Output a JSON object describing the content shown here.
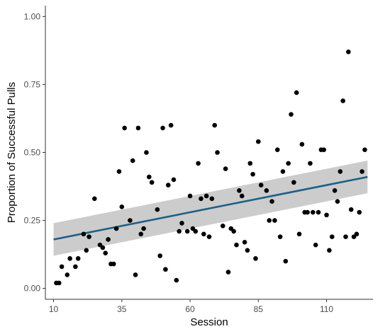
{
  "colors": {
    "points": "#000000",
    "fit_line": "#1f5f86",
    "ci_band": "#bfbfbf",
    "axis": "#333333",
    "tick_text": "#4d4d4d"
  },
  "chart_data": {
    "type": "scatter",
    "title": "",
    "xlabel": "Session",
    "ylabel": "Proportion of Successful Pulls",
    "xlim": [
      7,
      127
    ],
    "ylim": [
      -0.04,
      1.04
    ],
    "x_ticks": [
      10,
      35,
      60,
      85,
      110
    ],
    "x_tick_labels": [
      "10",
      "35",
      "60",
      "85",
      "110"
    ],
    "y_ticks": [
      0,
      0.25,
      0.5,
      0.75,
      1.0
    ],
    "y_tick_labels": [
      "0.00",
      "0.25",
      "0.50",
      "0.75",
      "1.00"
    ],
    "grid": false,
    "legend": "none",
    "points": [
      [
        11,
        0.02
      ],
      [
        12,
        0.02
      ],
      [
        13,
        0.08
      ],
      [
        15,
        0.05
      ],
      [
        16,
        0.11
      ],
      [
        18,
        0.08
      ],
      [
        19,
        0.11
      ],
      [
        21,
        0.2
      ],
      [
        22,
        0.14
      ],
      [
        23,
        0.19
      ],
      [
        25,
        0.33
      ],
      [
        27,
        0.16
      ],
      [
        28,
        0.15
      ],
      [
        29,
        0.13
      ],
      [
        30,
        0.18
      ],
      [
        31,
        0.09
      ],
      [
        32,
        0.09
      ],
      [
        33,
        0.22
      ],
      [
        34,
        0.43
      ],
      [
        35,
        0.3
      ],
      [
        36,
        0.59
      ],
      [
        38,
        0.25
      ],
      [
        39,
        0.47
      ],
      [
        40,
        0.05
      ],
      [
        41,
        0.59
      ],
      [
        42,
        0.2
      ],
      [
        43,
        0.22
      ],
      [
        44,
        0.5
      ],
      [
        45,
        0.41
      ],
      [
        46,
        0.39
      ],
      [
        48,
        0.29
      ],
      [
        49,
        0.12
      ],
      [
        50,
        0.59
      ],
      [
        51,
        0.07
      ],
      [
        52,
        0.38
      ],
      [
        53,
        0.6
      ],
      [
        54,
        0.4
      ],
      [
        55,
        0.03
      ],
      [
        56,
        0.21
      ],
      [
        57,
        0.24
      ],
      [
        59,
        0.21
      ],
      [
        60,
        0.34
      ],
      [
        61,
        0.22
      ],
      [
        62,
        0.21
      ],
      [
        63,
        0.46
      ],
      [
        64,
        0.33
      ],
      [
        65,
        0.2
      ],
      [
        66,
        0.34
      ],
      [
        67,
        0.19
      ],
      [
        68,
        0.33
      ],
      [
        69,
        0.6
      ],
      [
        70,
        0.5
      ],
      [
        72,
        0.23
      ],
      [
        73,
        0.44
      ],
      [
        74,
        0.06
      ],
      [
        75,
        0.22
      ],
      [
        76,
        0.21
      ],
      [
        77,
        0.16
      ],
      [
        78,
        0.36
      ],
      [
        79,
        0.34
      ],
      [
        80,
        0.17
      ],
      [
        81,
        0.14
      ],
      [
        82,
        0.46
      ],
      [
        83,
        0.42
      ],
      [
        84,
        0.11
      ],
      [
        85,
        0.54
      ],
      [
        86,
        0.38
      ],
      [
        88,
        0.36
      ],
      [
        89,
        0.25
      ],
      [
        90,
        0.32
      ],
      [
        91,
        0.25
      ],
      [
        92,
        0.51
      ],
      [
        93,
        0.19
      ],
      [
        94,
        0.43
      ],
      [
        95,
        0.1
      ],
      [
        96,
        0.46
      ],
      [
        97,
        0.64
      ],
      [
        98,
        0.39
      ],
      [
        99,
        0.72
      ],
      [
        100,
        0.2
      ],
      [
        101,
        0.53
      ],
      [
        102,
        0.28
      ],
      [
        103,
        0.28
      ],
      [
        104,
        0.46
      ],
      [
        105,
        0.28
      ],
      [
        106,
        0.16
      ],
      [
        107,
        0.28
      ],
      [
        108,
        0.51
      ],
      [
        109,
        0.51
      ],
      [
        110,
        0.27
      ],
      [
        111,
        0.14
      ],
      [
        112,
        0.19
      ],
      [
        113,
        0.36
      ],
      [
        114,
        0.32
      ],
      [
        115,
        0.43
      ],
      [
        116,
        0.69
      ],
      [
        117,
        0.19
      ],
      [
        118,
        0.87
      ],
      [
        119,
        0.29
      ],
      [
        120,
        0.19
      ],
      [
        121,
        0.2
      ],
      [
        122,
        0.28
      ],
      [
        123,
        0.43
      ],
      [
        124,
        0.51
      ]
    ],
    "fit": {
      "type": "linear",
      "x": [
        10,
        125
      ],
      "y": [
        0.18,
        0.41
      ],
      "ci_lower": [
        0.12,
        0.35
      ],
      "ci_upper": [
        0.24,
        0.47
      ]
    }
  }
}
